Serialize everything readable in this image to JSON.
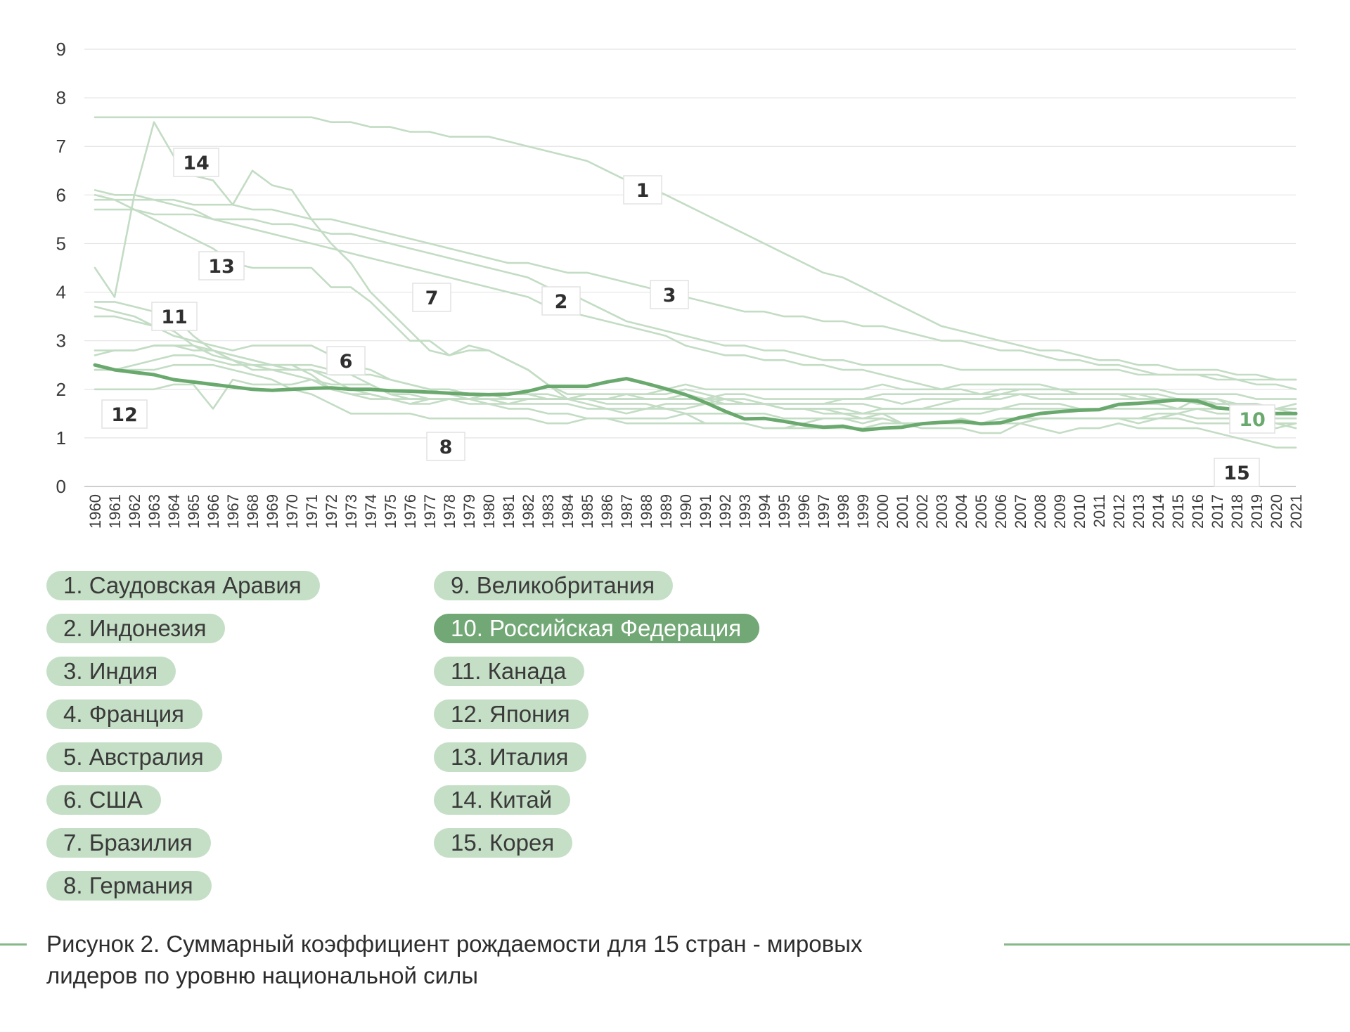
{
  "chart_data": {
    "type": "line",
    "x": [
      1960,
      1961,
      1962,
      1963,
      1964,
      1965,
      1966,
      1967,
      1968,
      1969,
      1970,
      1971,
      1972,
      1973,
      1974,
      1975,
      1976,
      1977,
      1978,
      1979,
      1980,
      1981,
      1982,
      1983,
      1984,
      1985,
      1986,
      1987,
      1988,
      1989,
      1990,
      1991,
      1992,
      1993,
      1994,
      1995,
      1996,
      1997,
      1998,
      1999,
      2000,
      2001,
      2002,
      2003,
      2004,
      2005,
      2006,
      2007,
      2008,
      2009,
      2010,
      2011,
      2012,
      2013,
      2014,
      2015,
      2016,
      2017,
      2018,
      2019,
      2020,
      2021
    ],
    "xlabel": "",
    "ylabel": "",
    "ylim": [
      0,
      9
    ],
    "yticks": [
      0,
      1,
      2,
      3,
      4,
      5,
      6,
      7,
      8,
      9
    ],
    "grid": true,
    "highlight_color": "#6aa96e",
    "muted_color": "#c3dcc4",
    "series": [
      {
        "name": "1. Саудовская Аравия",
        "label": "1",
        "highlight": false,
        "values": [
          7.6,
          7.6,
          7.6,
          7.6,
          7.6,
          7.6,
          7.6,
          7.6,
          7.6,
          7.6,
          7.6,
          7.6,
          7.5,
          7.5,
          7.4,
          7.4,
          7.3,
          7.3,
          7.2,
          7.2,
          7.2,
          7.1,
          7.0,
          6.9,
          6.8,
          6.7,
          6.5,
          6.3,
          6.2,
          6.0,
          5.8,
          5.6,
          5.4,
          5.2,
          5.0,
          4.8,
          4.6,
          4.4,
          4.3,
          4.1,
          3.9,
          3.7,
          3.5,
          3.3,
          3.2,
          3.1,
          3.0,
          2.9,
          2.8,
          2.8,
          2.7,
          2.6,
          2.6,
          2.5,
          2.5,
          2.4,
          2.4,
          2.4,
          2.3,
          2.3,
          2.2,
          2.2
        ]
      },
      {
        "name": "2. Индонезия",
        "label": "2",
        "highlight": false,
        "values": [
          5.7,
          5.7,
          5.7,
          5.6,
          5.6,
          5.6,
          5.5,
          5.5,
          5.5,
          5.4,
          5.4,
          5.3,
          5.2,
          5.2,
          5.1,
          5.0,
          4.9,
          4.8,
          4.7,
          4.6,
          4.5,
          4.4,
          4.3,
          4.1,
          4.0,
          3.8,
          3.6,
          3.4,
          3.3,
          3.2,
          3.1,
          3.0,
          2.9,
          2.9,
          2.8,
          2.8,
          2.7,
          2.6,
          2.6,
          2.5,
          2.5,
          2.5,
          2.5,
          2.5,
          2.4,
          2.4,
          2.4,
          2.4,
          2.4,
          2.4,
          2.4,
          2.4,
          2.4,
          2.3,
          2.3,
          2.3,
          2.3,
          2.3,
          2.2,
          2.2,
          2.2,
          2.2
        ]
      },
      {
        "name": "3. Индия",
        "label": "3",
        "highlight": false,
        "values": [
          5.9,
          5.9,
          5.9,
          5.9,
          5.9,
          5.8,
          5.8,
          5.8,
          5.7,
          5.7,
          5.6,
          5.5,
          5.5,
          5.4,
          5.3,
          5.2,
          5.1,
          5.0,
          4.9,
          4.8,
          4.7,
          4.6,
          4.6,
          4.5,
          4.4,
          4.4,
          4.3,
          4.2,
          4.1,
          4.0,
          3.9,
          3.8,
          3.7,
          3.6,
          3.6,
          3.5,
          3.5,
          3.4,
          3.4,
          3.3,
          3.3,
          3.2,
          3.1,
          3.0,
          3.0,
          2.9,
          2.8,
          2.8,
          2.7,
          2.6,
          2.6,
          2.5,
          2.5,
          2.4,
          2.3,
          2.3,
          2.3,
          2.2,
          2.2,
          2.1,
          2.1,
          2.0
        ]
      },
      {
        "name": "4. Франция",
        "label": "",
        "highlight": false,
        "values": [
          2.8,
          2.8,
          2.8,
          2.9,
          2.9,
          2.8,
          2.8,
          2.7,
          2.6,
          2.5,
          2.5,
          2.5,
          2.4,
          2.3,
          2.1,
          1.9,
          1.8,
          1.8,
          1.8,
          1.8,
          1.9,
          1.9,
          1.9,
          1.8,
          1.8,
          1.8,
          1.8,
          1.8,
          1.8,
          1.8,
          1.8,
          1.8,
          1.7,
          1.7,
          1.7,
          1.7,
          1.7,
          1.7,
          1.8,
          1.8,
          1.9,
          1.9,
          1.9,
          1.9,
          1.9,
          1.9,
          2.0,
          2.0,
          2.0,
          2.0,
          2.0,
          2.0,
          2.0,
          2.0,
          2.0,
          1.9,
          1.9,
          1.9,
          1.9,
          1.8,
          1.8,
          1.8
        ]
      },
      {
        "name": "5. Австралия",
        "label": "",
        "highlight": false,
        "values": [
          3.5,
          3.5,
          3.4,
          3.3,
          3.1,
          3.0,
          2.9,
          2.8,
          2.9,
          2.9,
          2.9,
          2.9,
          2.7,
          2.5,
          2.4,
          2.2,
          2.1,
          2.0,
          2.0,
          1.9,
          1.9,
          1.9,
          1.9,
          1.9,
          1.8,
          1.9,
          1.9,
          1.9,
          1.8,
          1.8,
          1.9,
          1.8,
          1.9,
          1.9,
          1.8,
          1.8,
          1.8,
          1.8,
          1.8,
          1.8,
          1.8,
          1.7,
          1.8,
          1.8,
          1.8,
          1.8,
          1.9,
          2.0,
          2.0,
          2.0,
          1.9,
          1.9,
          1.9,
          1.9,
          1.8,
          1.8,
          1.7,
          1.7,
          1.7,
          1.7,
          1.6,
          1.6
        ]
      },
      {
        "name": "6. США",
        "label": "6",
        "highlight": false,
        "values": [
          3.7,
          3.6,
          3.5,
          3.3,
          3.2,
          2.9,
          2.7,
          2.6,
          2.5,
          2.5,
          2.5,
          2.3,
          2.0,
          1.9,
          1.8,
          1.8,
          1.7,
          1.8,
          1.8,
          1.8,
          1.8,
          1.8,
          1.8,
          1.8,
          1.8,
          1.8,
          1.8,
          1.9,
          1.9,
          2.0,
          2.1,
          2.0,
          2.0,
          2.0,
          2.0,
          2.0,
          2.0,
          2.0,
          2.0,
          2.0,
          2.1,
          2.0,
          2.0,
          2.0,
          2.1,
          2.1,
          2.1,
          2.1,
          2.1,
          2.0,
          1.9,
          1.9,
          1.9,
          1.9,
          1.9,
          1.8,
          1.8,
          1.8,
          1.7,
          1.7,
          1.6,
          1.7
        ]
      },
      {
        "name": "7. Бразилия",
        "label": "7",
        "highlight": false,
        "values": [
          6.1,
          6.0,
          6.0,
          5.9,
          5.8,
          5.7,
          5.5,
          5.4,
          5.3,
          5.2,
          5.1,
          5.0,
          4.9,
          4.8,
          4.7,
          4.6,
          4.5,
          4.4,
          4.3,
          4.2,
          4.1,
          4.0,
          3.9,
          3.7,
          3.6,
          3.5,
          3.4,
          3.3,
          3.2,
          3.1,
          2.9,
          2.8,
          2.7,
          2.7,
          2.6,
          2.6,
          2.5,
          2.5,
          2.4,
          2.4,
          2.3,
          2.2,
          2.1,
          2.0,
          2.0,
          1.9,
          1.9,
          1.9,
          1.8,
          1.8,
          1.8,
          1.8,
          1.8,
          1.8,
          1.8,
          1.8,
          1.7,
          1.7,
          1.7,
          1.7,
          1.6,
          1.6
        ]
      },
      {
        "name": "8. Германия",
        "label": "8",
        "highlight": false,
        "values": [
          2.4,
          2.4,
          2.4,
          2.4,
          2.5,
          2.5,
          2.5,
          2.4,
          2.3,
          2.2,
          2.0,
          1.9,
          1.7,
          1.5,
          1.5,
          1.5,
          1.5,
          1.4,
          1.4,
          1.4,
          1.4,
          1.4,
          1.4,
          1.3,
          1.3,
          1.4,
          1.4,
          1.4,
          1.4,
          1.4,
          1.5,
          1.3,
          1.3,
          1.3,
          1.2,
          1.2,
          1.3,
          1.4,
          1.4,
          1.4,
          1.4,
          1.3,
          1.3,
          1.3,
          1.4,
          1.3,
          1.3,
          1.4,
          1.4,
          1.4,
          1.4,
          1.4,
          1.4,
          1.4,
          1.5,
          1.5,
          1.6,
          1.6,
          1.6,
          1.5,
          1.5,
          1.5
        ]
      },
      {
        "name": "9. Великобритания",
        "label": "",
        "highlight": false,
        "values": [
          2.7,
          2.8,
          2.8,
          2.9,
          2.9,
          2.9,
          2.8,
          2.7,
          2.6,
          2.5,
          2.4,
          2.4,
          2.2,
          2.0,
          1.9,
          1.8,
          1.7,
          1.7,
          1.8,
          1.8,
          1.9,
          1.8,
          1.8,
          1.8,
          1.8,
          1.8,
          1.8,
          1.8,
          1.8,
          1.8,
          1.8,
          1.8,
          1.8,
          1.8,
          1.7,
          1.7,
          1.7,
          1.7,
          1.7,
          1.7,
          1.6,
          1.6,
          1.6,
          1.7,
          1.8,
          1.8,
          1.8,
          1.9,
          1.9,
          1.9,
          1.9,
          1.9,
          1.9,
          1.8,
          1.8,
          1.8,
          1.8,
          1.7,
          1.7,
          1.6,
          1.6,
          1.5
        ]
      },
      {
        "name": "10. Российская Федерация",
        "label": "10",
        "highlight": true,
        "values": [
          2.5,
          2.4,
          2.35,
          2.3,
          2.2,
          2.15,
          2.1,
          2.05,
          2.0,
          1.98,
          2.0,
          2.02,
          2.03,
          2.0,
          2.0,
          1.97,
          1.96,
          1.94,
          1.92,
          1.9,
          1.89,
          1.9,
          1.96,
          2.06,
          2.06,
          2.06,
          2.15,
          2.22,
          2.12,
          2.01,
          1.89,
          1.73,
          1.55,
          1.39,
          1.4,
          1.34,
          1.27,
          1.22,
          1.24,
          1.16,
          1.2,
          1.22,
          1.29,
          1.32,
          1.34,
          1.29,
          1.31,
          1.42,
          1.5,
          1.54,
          1.57,
          1.58,
          1.69,
          1.71,
          1.75,
          1.78,
          1.76,
          1.62,
          1.58,
          1.5,
          1.5,
          1.5
        ]
      },
      {
        "name": "11. Канада",
        "label": "11",
        "highlight": false,
        "values": [
          3.8,
          3.8,
          3.7,
          3.6,
          3.5,
          3.1,
          2.8,
          2.6,
          2.4,
          2.4,
          2.3,
          2.2,
          2.0,
          1.9,
          1.9,
          1.8,
          1.8,
          1.8,
          1.8,
          1.7,
          1.7,
          1.7,
          1.7,
          1.7,
          1.7,
          1.6,
          1.6,
          1.6,
          1.6,
          1.7,
          1.7,
          1.7,
          1.7,
          1.7,
          1.7,
          1.6,
          1.6,
          1.6,
          1.5,
          1.5,
          1.5,
          1.5,
          1.5,
          1.5,
          1.5,
          1.5,
          1.6,
          1.7,
          1.7,
          1.7,
          1.6,
          1.6,
          1.6,
          1.6,
          1.6,
          1.6,
          1.6,
          1.5,
          1.5,
          1.5,
          1.4,
          1.4
        ]
      },
      {
        "name": "12. Япония",
        "label": "12",
        "highlight": false,
        "values": [
          2.0,
          2.0,
          2.0,
          2.0,
          2.1,
          2.1,
          1.6,
          2.2,
          2.1,
          2.1,
          2.1,
          2.2,
          2.1,
          2.1,
          2.1,
          1.9,
          1.9,
          1.8,
          1.8,
          1.8,
          1.8,
          1.7,
          1.8,
          1.8,
          1.8,
          1.8,
          1.7,
          1.7,
          1.7,
          1.6,
          1.5,
          1.5,
          1.5,
          1.5,
          1.5,
          1.4,
          1.4,
          1.4,
          1.4,
          1.3,
          1.4,
          1.3,
          1.3,
          1.3,
          1.3,
          1.3,
          1.3,
          1.3,
          1.4,
          1.4,
          1.4,
          1.4,
          1.4,
          1.4,
          1.4,
          1.5,
          1.4,
          1.4,
          1.4,
          1.4,
          1.3,
          1.3
        ]
      },
      {
        "name": "13. Италия",
        "label": "13",
        "highlight": false,
        "values": [
          2.4,
          2.4,
          2.5,
          2.6,
          2.7,
          2.7,
          2.6,
          2.5,
          2.5,
          2.4,
          2.4,
          2.4,
          2.3,
          2.3,
          2.3,
          2.2,
          2.1,
          2.0,
          1.9,
          1.8,
          1.7,
          1.6,
          1.6,
          1.5,
          1.5,
          1.4,
          1.4,
          1.3,
          1.3,
          1.3,
          1.3,
          1.3,
          1.3,
          1.3,
          1.2,
          1.2,
          1.2,
          1.2,
          1.2,
          1.2,
          1.3,
          1.3,
          1.3,
          1.3,
          1.3,
          1.3,
          1.4,
          1.4,
          1.4,
          1.4,
          1.4,
          1.4,
          1.4,
          1.3,
          1.4,
          1.4,
          1.3,
          1.3,
          1.3,
          1.3,
          1.2,
          1.3
        ]
      },
      {
        "name": "14. Китай",
        "label": "14",
        "highlight": false,
        "values": [
          4.5,
          3.9,
          6.0,
          7.5,
          6.8,
          6.4,
          6.3,
          5.8,
          6.5,
          6.2,
          6.1,
          5.5,
          5.0,
          4.6,
          4.0,
          3.6,
          3.2,
          2.8,
          2.7,
          2.9,
          2.8,
          2.6,
          2.4,
          2.1,
          1.9,
          1.9,
          1.9,
          1.9,
          1.9,
          1.9,
          2.0,
          1.9,
          1.8,
          1.7,
          1.7,
          1.6,
          1.6,
          1.6,
          1.6,
          1.5,
          1.6,
          1.6,
          1.6,
          1.6,
          1.6,
          1.6,
          1.6,
          1.6,
          1.6,
          1.6,
          1.6,
          1.6,
          1.7,
          1.7,
          1.7,
          1.6,
          1.8,
          1.8,
          1.6,
          1.5,
          1.3,
          1.2
        ]
      },
      {
        "name": "15. Корея",
        "label": "15",
        "highlight": false,
        "values": [
          6.0,
          5.9,
          5.7,
          5.5,
          5.3,
          5.1,
          4.9,
          4.6,
          4.5,
          4.5,
          4.5,
          4.5,
          4.1,
          4.1,
          3.8,
          3.4,
          3.0,
          3.0,
          2.7,
          2.8,
          2.8,
          2.6,
          2.4,
          2.1,
          1.8,
          1.7,
          1.6,
          1.5,
          1.6,
          1.6,
          1.6,
          1.7,
          1.8,
          1.7,
          1.7,
          1.6,
          1.6,
          1.5,
          1.5,
          1.4,
          1.5,
          1.3,
          1.2,
          1.2,
          1.2,
          1.1,
          1.1,
          1.3,
          1.2,
          1.1,
          1.2,
          1.2,
          1.3,
          1.2,
          1.2,
          1.2,
          1.2,
          1.1,
          1.0,
          0.9,
          0.8,
          0.8
        ]
      }
    ]
  },
  "legend": {
    "col1": [
      "1. Саудовская Аравия",
      "2. Индонезия",
      "3. Индия",
      "4. Франция",
      "5. Австралия",
      "6. США",
      "7. Бразилия",
      "8. Германия"
    ],
    "col2": [
      "9. Великобритания",
      "10. Российская Федерация",
      "11. Канада",
      "12. Япония",
      "13. Италия",
      "14. Китай",
      "15. Корея"
    ]
  },
  "caption": {
    "line1": "Рисунок 2. Суммарный коэффициент рождаемости для 15 стран - мировых",
    "line2": "лидеров по уровню национальной силы"
  }
}
